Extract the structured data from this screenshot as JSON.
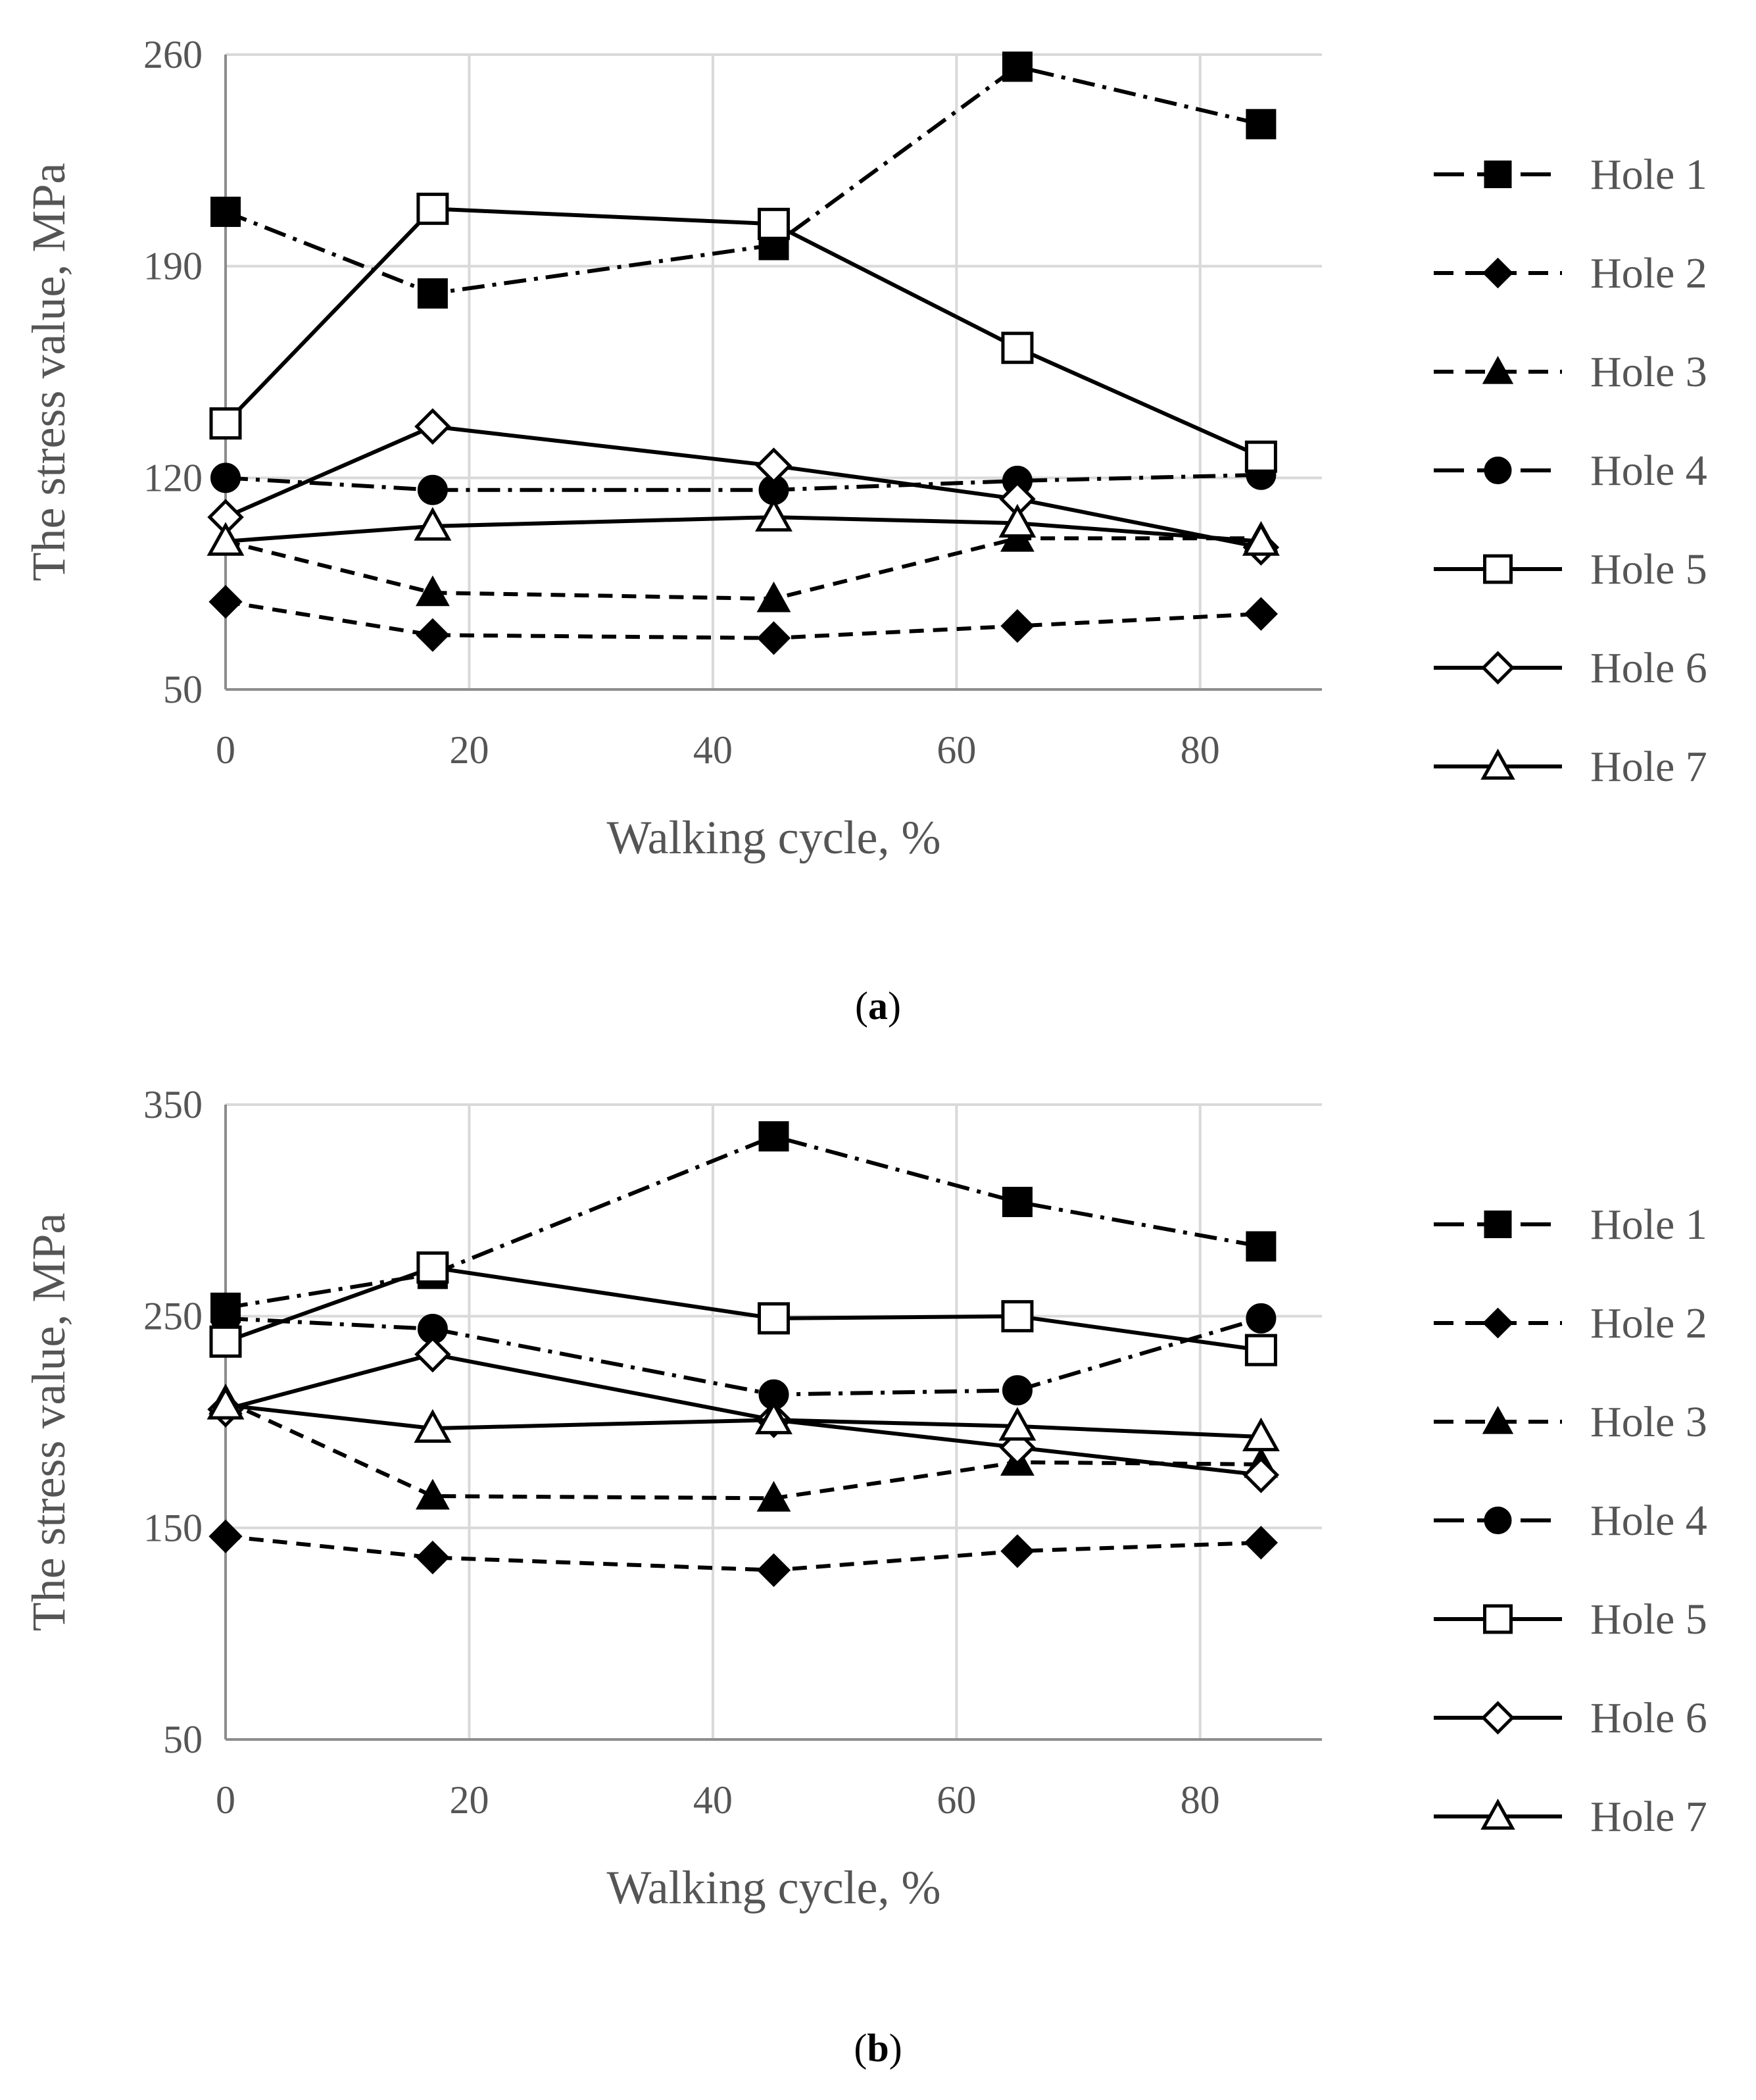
{
  "chart_data": [
    {
      "type": "line",
      "panel_label": "a",
      "xlabel": "Walking cycle, %",
      "ylabel": "The stress value, MPa",
      "xlim": [
        0,
        90
      ],
      "ylim": [
        50,
        260
      ],
      "x_ticks": [
        0,
        20,
        40,
        60,
        80
      ],
      "y_ticks": [
        50,
        120,
        190,
        260
      ],
      "grid": "both",
      "legend_position": "right",
      "x": [
        0,
        17,
        45,
        65,
        85
      ],
      "series": [
        {
          "name": "Hole 1",
          "values": [
            208,
            181,
            197,
            256,
            237
          ],
          "marker": "square-filled",
          "dash": "dash-dot"
        },
        {
          "name": "Hole 2",
          "values": [
            79,
            68,
            67,
            71,
            75
          ],
          "marker": "diamond-filled",
          "dash": "dashed"
        },
        {
          "name": "Hole 3",
          "values": [
            99,
            82,
            80,
            100,
            100
          ],
          "marker": "triangle-filled",
          "dash": "dashed"
        },
        {
          "name": "Hole 4",
          "values": [
            120,
            116,
            116,
            119,
            121
          ],
          "marker": "circle-filled",
          "dash": "dash-dot"
        },
        {
          "name": "Hole 5",
          "values": [
            138,
            209,
            204,
            163,
            127
          ],
          "marker": "square-open",
          "dash": "solid"
        },
        {
          "name": "Hole 6",
          "values": [
            107,
            137,
            124,
            113,
            97
          ],
          "marker": "diamond-open",
          "dash": "solid"
        },
        {
          "name": "Hole 7",
          "values": [
            99,
            104,
            107,
            105,
            99
          ],
          "marker": "triangle-open",
          "dash": "solid"
        }
      ]
    },
    {
      "type": "line",
      "panel_label": "b",
      "xlabel": "Walking cycle, %",
      "ylabel": "The stress value, MPa",
      "xlim": [
        0,
        90
      ],
      "ylim": [
        50,
        350
      ],
      "x_ticks": [
        0,
        20,
        40,
        60,
        80
      ],
      "y_ticks": [
        50,
        150,
        250,
        350
      ],
      "grid": "both",
      "legend_position": "right",
      "x": [
        0,
        17,
        45,
        65,
        85
      ],
      "series": [
        {
          "name": "Hole 1",
          "values": [
            254,
            270,
            335,
            304,
            283
          ],
          "marker": "square-filled",
          "dash": "dash-dot"
        },
        {
          "name": "Hole 2",
          "values": [
            146,
            136,
            130,
            139,
            143
          ],
          "marker": "diamond-filled",
          "dash": "dashed"
        },
        {
          "name": "Hole 3",
          "values": [
            210,
            165,
            164,
            181,
            180
          ],
          "marker": "triangle-filled",
          "dash": "dashed"
        },
        {
          "name": "Hole 4",
          "values": [
            249,
            244,
            213,
            215,
            249
          ],
          "marker": "circle-filled",
          "dash": "dash-dot"
        },
        {
          "name": "Hole 5",
          "values": [
            238,
            273,
            249,
            250,
            234
          ],
          "marker": "square-open",
          "dash": "solid"
        },
        {
          "name": "Hole 6",
          "values": [
            206,
            232,
            201,
            188,
            175
          ],
          "marker": "diamond-open",
          "dash": "solid"
        },
        {
          "name": "Hole 7",
          "values": [
            208,
            197,
            201,
            198,
            193
          ],
          "marker": "triangle-open",
          "dash": "solid"
        }
      ]
    }
  ],
  "colors": {
    "text": "#555555",
    "grid": "#d9d9d9",
    "series": "#000000"
  }
}
